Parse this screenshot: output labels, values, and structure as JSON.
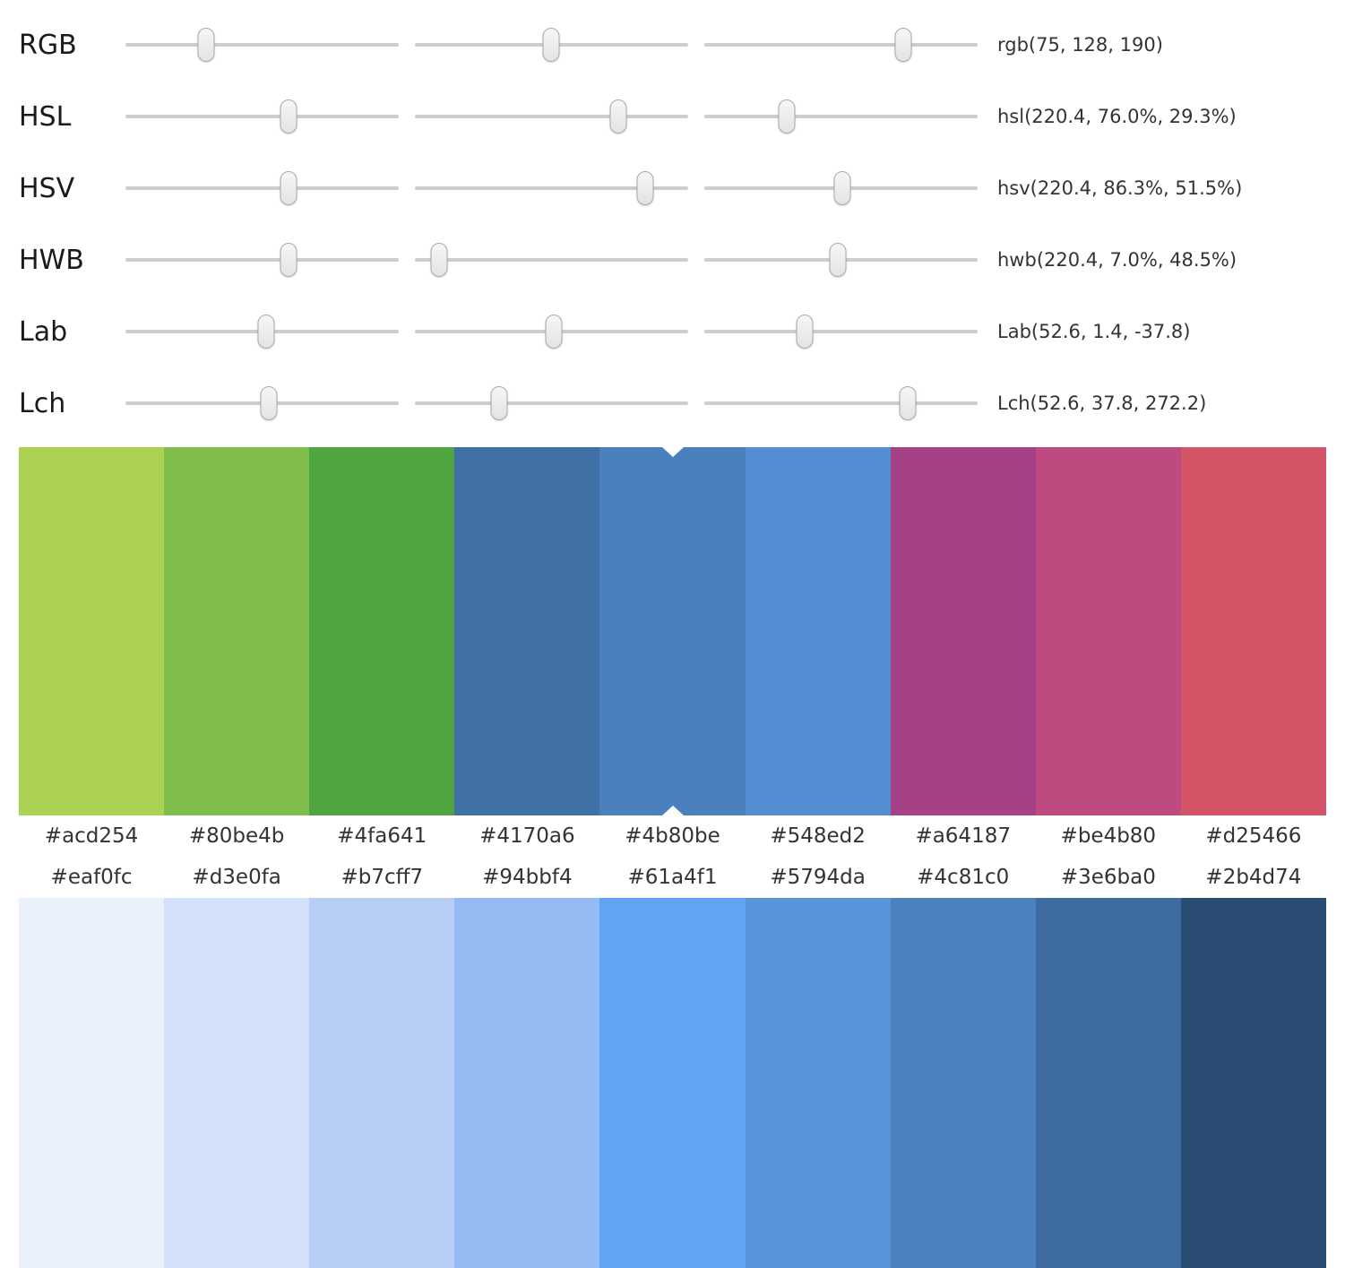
{
  "slider_rows": [
    {
      "label": "RGB",
      "value": "rgb(75, 128, 190)",
      "positions": [
        29.5,
        49.8,
        72.8
      ]
    },
    {
      "label": "HSL",
      "value": "hsl(220.4, 76.0%, 29.3%)",
      "positions": [
        59.7,
        74.4,
        30.2
      ]
    },
    {
      "label": "HSV",
      "value": "hsv(220.4, 86.3%, 51.5%)",
      "positions": [
        59.7,
        84.3,
        50.5
      ]
    },
    {
      "label": "HWB",
      "value": "hwb(220.4, 7.0%, 48.5%)",
      "positions": [
        59.7,
        8.9,
        48.9
      ]
    },
    {
      "label": "Lab",
      "value": "Lab(52.6, 1.4, -37.8)",
      "positions": [
        51.5,
        50.8,
        36.7
      ]
    },
    {
      "label": "Lch",
      "value": "Lch(52.6, 37.8, 272.2)",
      "positions": [
        52.5,
        30.8,
        74.4
      ]
    }
  ],
  "hue_palette": {
    "selected_index": 4,
    "swatches": [
      {
        "hex": "#acd254"
      },
      {
        "hex": "#80be4b"
      },
      {
        "hex": "#4fa641"
      },
      {
        "hex": "#4170a6"
      },
      {
        "hex": "#4b80be"
      },
      {
        "hex": "#548ed2"
      },
      {
        "hex": "#a64187"
      },
      {
        "hex": "#be4b80"
      },
      {
        "hex": "#d25466"
      }
    ]
  },
  "shade_palette": {
    "swatches": [
      {
        "hex": "#eaf0fc"
      },
      {
        "hex": "#d3e0fa"
      },
      {
        "hex": "#b7cff7"
      },
      {
        "hex": "#94bbf4"
      },
      {
        "hex": "#61a4f1"
      },
      {
        "hex": "#5794da"
      },
      {
        "hex": "#4c81c0"
      },
      {
        "hex": "#3e6ba0"
      },
      {
        "hex": "#2b4d74"
      }
    ]
  }
}
